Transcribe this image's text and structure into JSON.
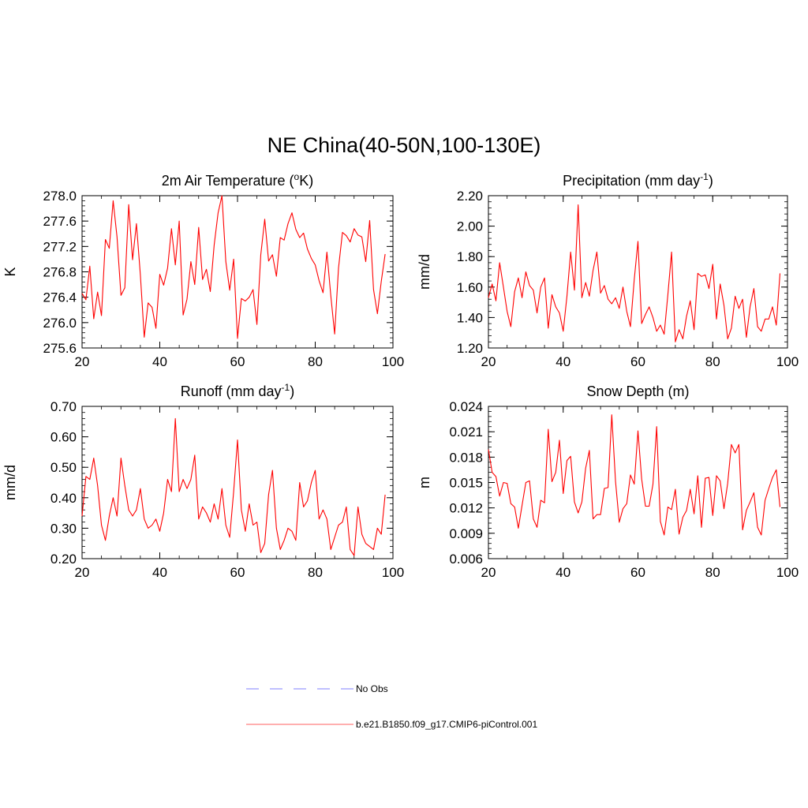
{
  "title": "NE China(40-50N,100-130E)",
  "legend": [
    {
      "label": "No Obs",
      "color": "#9999ff",
      "dash": true
    },
    {
      "label": "b.e21.B1850.f09_g17.CMIP6-piControl.001",
      "color": "#ff0000",
      "dash": false
    }
  ],
  "chart_data": [
    {
      "type": "line",
      "id": "temp",
      "title": "2m Air Temperature (",
      "title_sup": "o",
      "title_post": "K)",
      "ylabel": "K",
      "xlim": [
        20,
        100
      ],
      "ylim": [
        275.6,
        278.0
      ],
      "xticks": [
        20,
        40,
        60,
        80,
        100
      ],
      "xticklabels": [
        "20",
        "40",
        "60",
        "80",
        "100"
      ],
      "yticks": [
        275.6,
        276.0,
        276.4,
        276.8,
        277.2,
        277.6,
        278.0
      ],
      "yticklabels": [
        "275.6",
        "276.0",
        "276.4",
        "276.8",
        "277.2",
        "277.6",
        "278.0"
      ],
      "yminor": 0.08,
      "xminor": 5,
      "series": [
        {
          "name": "b.e21.B1850.f09_g17.CMIP6-piControl.001",
          "color": "#ff0000",
          "x_start": 20,
          "x_step": 1,
          "values": [
            276.46,
            276.36,
            276.89,
            276.06,
            276.48,
            276.11,
            277.31,
            277.17,
            277.92,
            277.35,
            276.43,
            276.55,
            277.86,
            276.99,
            277.56,
            276.75,
            275.77,
            276.31,
            276.24,
            275.91,
            276.76,
            276.59,
            276.86,
            277.48,
            276.91,
            277.6,
            276.12,
            276.37,
            276.96,
            276.6,
            277.5,
            276.68,
            276.84,
            276.49,
            277.22,
            277.73,
            278.0,
            276.96,
            276.51,
            277.0,
            275.75,
            276.38,
            276.34,
            276.4,
            276.52,
            275.97,
            277.07,
            277.63,
            276.97,
            277.07,
            276.73,
            277.34,
            277.3,
            277.56,
            277.73,
            277.47,
            277.34,
            277.41,
            277.16,
            277.01,
            276.91,
            276.66,
            276.47,
            277.11,
            276.43,
            275.82,
            276.86,
            277.42,
            277.37,
            277.27,
            277.48,
            277.38,
            277.35,
            276.96,
            277.61,
            276.52,
            276.14,
            276.65,
            277.08
          ]
        }
      ]
    },
    {
      "type": "line",
      "id": "precip",
      "title": "Precipitation (mm day",
      "title_sup": "-1",
      "title_post": ")",
      "ylabel": "mm/d",
      "xlim": [
        20,
        100
      ],
      "ylim": [
        1.2,
        2.2
      ],
      "xticks": [
        20,
        40,
        60,
        80,
        100
      ],
      "xticklabels": [
        "20",
        "40",
        "60",
        "80",
        "100"
      ],
      "yticks": [
        1.2,
        1.4,
        1.6,
        1.8,
        2.0,
        2.2
      ],
      "yticklabels": [
        "1.20",
        "1.40",
        "1.60",
        "1.80",
        "2.00",
        "2.20"
      ],
      "yminor": 0.04,
      "xminor": 5,
      "series": [
        {
          "name": "b.e21.B1850.f09_g17.CMIP6-piControl.001",
          "color": "#ff0000",
          "x_start": 20,
          "x_step": 1,
          "values": [
            1.53,
            1.62,
            1.51,
            1.76,
            1.6,
            1.44,
            1.34,
            1.57,
            1.66,
            1.53,
            1.7,
            1.61,
            1.58,
            1.43,
            1.6,
            1.66,
            1.33,
            1.55,
            1.47,
            1.43,
            1.31,
            1.54,
            1.83,
            1.58,
            2.14,
            1.53,
            1.63,
            1.54,
            1.71,
            1.83,
            1.56,
            1.61,
            1.52,
            1.49,
            1.53,
            1.46,
            1.6,
            1.44,
            1.34,
            1.65,
            1.9,
            1.36,
            1.42,
            1.47,
            1.4,
            1.31,
            1.35,
            1.29,
            1.55,
            1.83,
            1.24,
            1.32,
            1.26,
            1.41,
            1.51,
            1.32,
            1.69,
            1.67,
            1.68,
            1.59,
            1.75,
            1.39,
            1.62,
            1.48,
            1.26,
            1.33,
            1.54,
            1.46,
            1.52,
            1.27,
            1.47,
            1.59,
            1.34,
            1.31,
            1.39,
            1.39,
            1.47,
            1.35,
            1.69
          ]
        }
      ]
    },
    {
      "type": "line",
      "id": "runoff",
      "title": "Runoff (mm day",
      "title_sup": "-1",
      "title_post": ")",
      "ylabel": "mm/d",
      "xlim": [
        20,
        100
      ],
      "ylim": [
        0.2,
        0.7
      ],
      "xticks": [
        20,
        40,
        60,
        80,
        100
      ],
      "xticklabels": [
        "20",
        "40",
        "60",
        "80",
        "100"
      ],
      "yticks": [
        0.2,
        0.3,
        0.4,
        0.5,
        0.6,
        0.7
      ],
      "yticklabels": [
        "0.20",
        "0.30",
        "0.40",
        "0.50",
        "0.60",
        "0.70"
      ],
      "yminor": 0.02,
      "xminor": 5,
      "series": [
        {
          "name": "b.e21.B1850.f09_g17.CMIP6-piControl.001",
          "color": "#ff0000",
          "x_start": 20,
          "x_step": 1,
          "values": [
            0.34,
            0.47,
            0.46,
            0.53,
            0.44,
            0.31,
            0.26,
            0.34,
            0.4,
            0.34,
            0.53,
            0.44,
            0.36,
            0.34,
            0.36,
            0.43,
            0.33,
            0.3,
            0.31,
            0.33,
            0.29,
            0.35,
            0.46,
            0.42,
            0.66,
            0.42,
            0.46,
            0.43,
            0.46,
            0.54,
            0.33,
            0.37,
            0.35,
            0.32,
            0.38,
            0.33,
            0.43,
            0.31,
            0.27,
            0.42,
            0.59,
            0.36,
            0.29,
            0.38,
            0.31,
            0.32,
            0.22,
            0.25,
            0.41,
            0.49,
            0.3,
            0.23,
            0.26,
            0.3,
            0.29,
            0.26,
            0.45,
            0.37,
            0.39,
            0.45,
            0.49,
            0.33,
            0.36,
            0.33,
            0.23,
            0.27,
            0.31,
            0.32,
            0.37,
            0.23,
            0.21,
            0.37,
            0.28,
            0.25,
            0.24,
            0.23,
            0.3,
            0.28,
            0.41
          ]
        }
      ]
    },
    {
      "type": "line",
      "id": "snow",
      "title": "Snow Depth (m)",
      "title_sup": "",
      "title_post": "",
      "ylabel": "m",
      "xlim": [
        20,
        100
      ],
      "ylim": [
        0.006,
        0.024
      ],
      "xticks": [
        20,
        40,
        60,
        80,
        100
      ],
      "xticklabels": [
        "20",
        "40",
        "60",
        "80",
        "100"
      ],
      "yticks": [
        0.006,
        0.009,
        0.012,
        0.015,
        0.018,
        0.021,
        0.024
      ],
      "yticklabels": [
        "0.006",
        "0.009",
        "0.012",
        "0.015",
        "0.018",
        "0.021",
        "0.024"
      ],
      "yminor": 0.0006,
      "xminor": 5,
      "series": [
        {
          "name": "b.e21.B1850.f09_g17.CMIP6-piControl.001",
          "color": "#ff0000",
          "x_start": 20,
          "x_step": 1,
          "values": [
            0.0189,
            0.0162,
            0.0157,
            0.0134,
            0.015,
            0.0149,
            0.0125,
            0.0121,
            0.0096,
            0.0123,
            0.015,
            0.0152,
            0.0107,
            0.0097,
            0.0129,
            0.0126,
            0.0213,
            0.0151,
            0.0162,
            0.02,
            0.0137,
            0.0176,
            0.0181,
            0.0127,
            0.0114,
            0.0127,
            0.0167,
            0.0188,
            0.0107,
            0.0112,
            0.0112,
            0.0143,
            0.0144,
            0.023,
            0.0151,
            0.0103,
            0.0119,
            0.0125,
            0.0159,
            0.0148,
            0.0211,
            0.0154,
            0.0122,
            0.0122,
            0.0148,
            0.0216,
            0.0104,
            0.0088,
            0.0121,
            0.0118,
            0.0142,
            0.0089,
            0.0109,
            0.0117,
            0.0142,
            0.0113,
            0.0158,
            0.0097,
            0.0155,
            0.0156,
            0.0111,
            0.0158,
            0.0152,
            0.0119,
            0.0149,
            0.0195,
            0.0185,
            0.0195,
            0.0094,
            0.0117,
            0.0127,
            0.0138,
            0.0097,
            0.0088,
            0.0129,
            0.0143,
            0.0156,
            0.0165,
            0.0121
          ]
        }
      ]
    }
  ]
}
